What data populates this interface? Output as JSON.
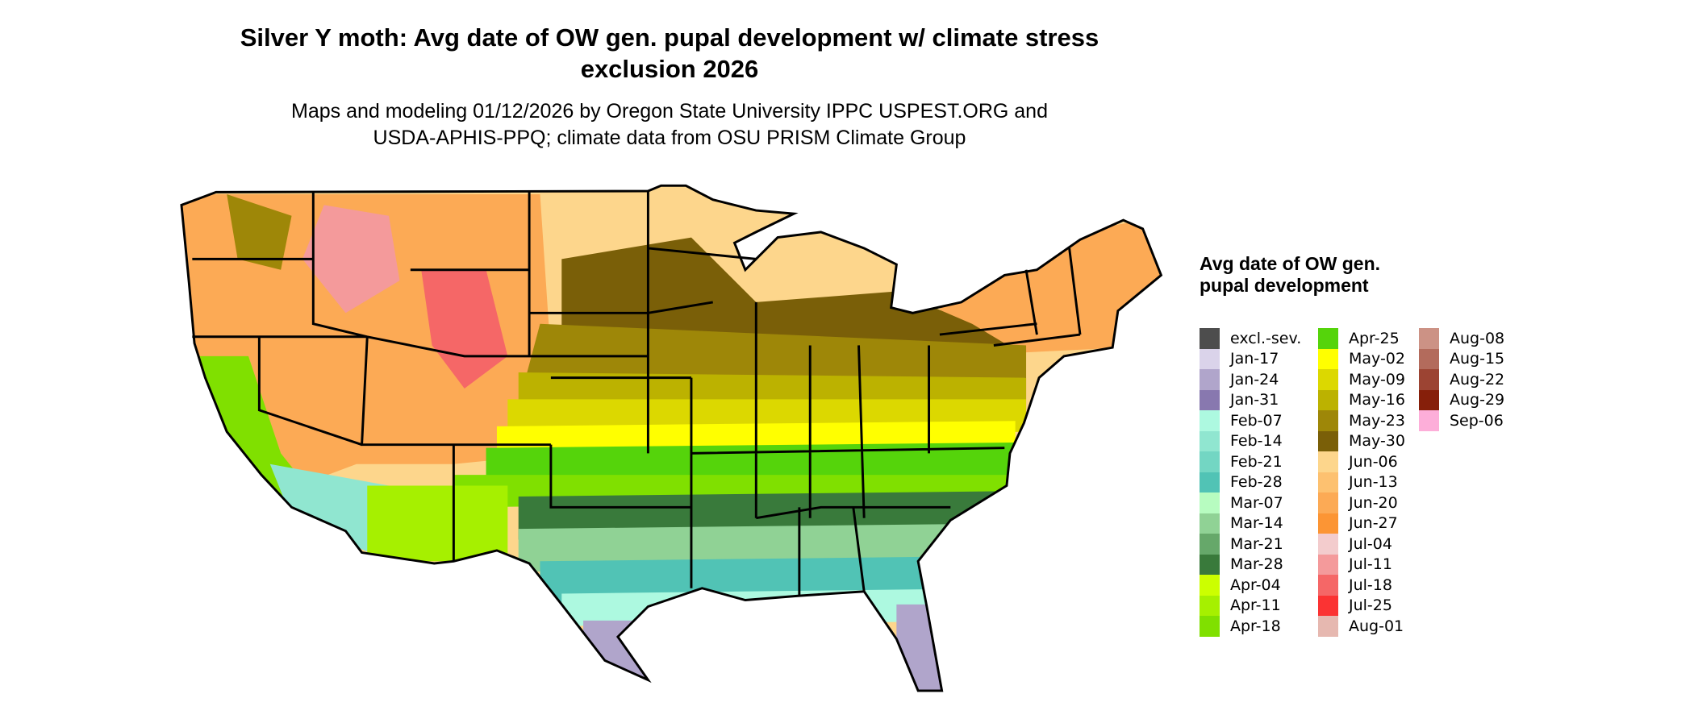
{
  "title": "Silver Y moth: Avg date of OW gen. pupal development w/ climate stress exclusion 2026",
  "subtitle_line1": "Maps and modeling 01/12/2026 by Oregon State University IPPC USPEST.ORG and",
  "subtitle_line2": "USDA-APHIS-PPQ; climate data from OSU PRISM Climate Group",
  "legend": {
    "title": "Avg date of OW gen. pupal development",
    "items": [
      {
        "label": "excl.-sev.",
        "color": "#4d4d4d"
      },
      {
        "label": "Jan-17",
        "color": "#dad3ea"
      },
      {
        "label": "Jan-24",
        "color": "#b0a5cb"
      },
      {
        "label": "Jan-31",
        "color": "#8878af"
      },
      {
        "label": "Feb-07",
        "color": "#adf9e0"
      },
      {
        "label": "Feb-14",
        "color": "#90e6d0"
      },
      {
        "label": "Feb-21",
        "color": "#73d6c3"
      },
      {
        "label": "Feb-28",
        "color": "#51c3b5"
      },
      {
        "label": "Mar-07",
        "color": "#b7fcc0"
      },
      {
        "label": "Mar-14",
        "color": "#90d295"
      },
      {
        "label": "Mar-21",
        "color": "#66a86a"
      },
      {
        "label": "Mar-28",
        "color": "#397a3b"
      },
      {
        "label": "Apr-04",
        "color": "#ccff00"
      },
      {
        "label": "Apr-11",
        "color": "#a6f000"
      },
      {
        "label": "Apr-18",
        "color": "#80e000"
      },
      {
        "label": "Apr-25",
        "color": "#55d40b"
      },
      {
        "label": "May-02",
        "color": "#ffff00"
      },
      {
        "label": "May-09",
        "color": "#dcd800"
      },
      {
        "label": "May-16",
        "color": "#bcb200"
      },
      {
        "label": "May-23",
        "color": "#9e8708"
      },
      {
        "label": "May-30",
        "color": "#7a5f08"
      },
      {
        "label": "Jun-06",
        "color": "#fdd68c"
      },
      {
        "label": "Jun-13",
        "color": "#fdc170"
      },
      {
        "label": "Jun-20",
        "color": "#fcaa55"
      },
      {
        "label": "Jun-27",
        "color": "#fc9534"
      },
      {
        "label": "Jul-04",
        "color": "#f3cccd"
      },
      {
        "label": "Jul-11",
        "color": "#f49a9b"
      },
      {
        "label": "Jul-18",
        "color": "#f56767"
      },
      {
        "label": "Jul-25",
        "color": "#fb3333"
      },
      {
        "label": "Aug-01",
        "color": "#e6b8b0"
      },
      {
        "label": "Aug-08",
        "color": "#cc9285"
      },
      {
        "label": "Aug-15",
        "color": "#b36b5c"
      },
      {
        "label": "Aug-22",
        "color": "#9c4433"
      },
      {
        "label": "Aug-29",
        "color": "#861f0a"
      },
      {
        "label": "Sep-06",
        "color": "#fdaed9"
      }
    ]
  }
}
